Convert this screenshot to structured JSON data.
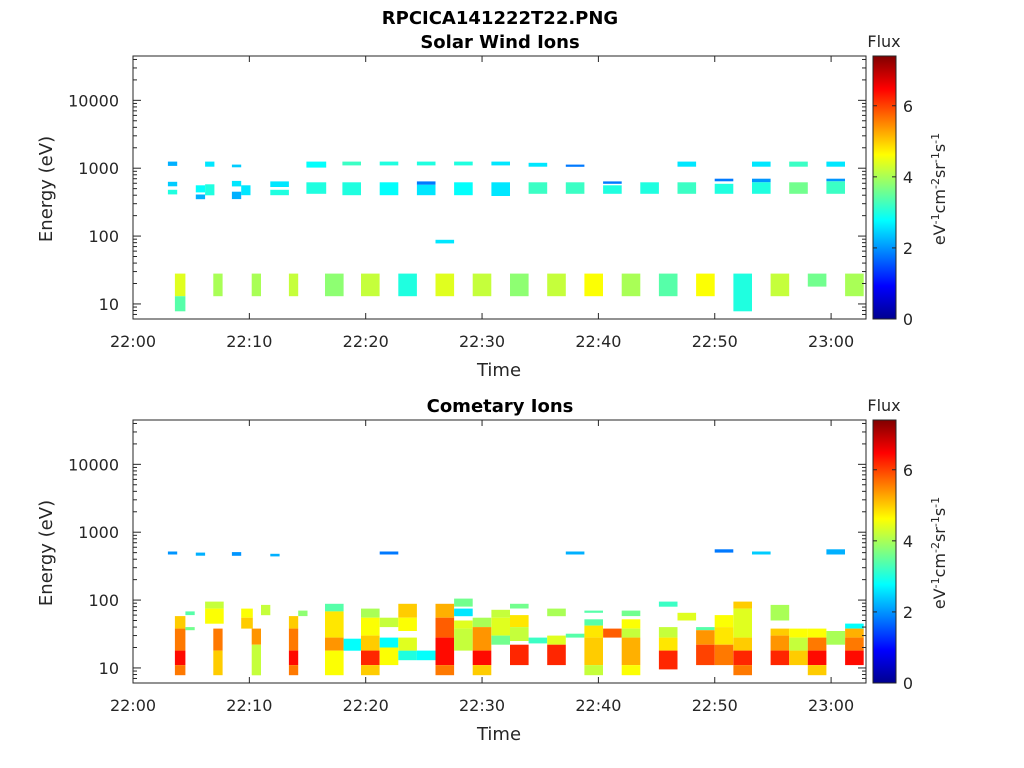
{
  "figure_title": "RPCICA141222T22.PNG",
  "colormap": [
    "#00008f",
    "#0000ff",
    "#0080ff",
    "#00ffff",
    "#80ff80",
    "#ffff00",
    "#ff8000",
    "#ff0000",
    "#800000"
  ],
  "chart_data": [
    {
      "type": "heatmap",
      "title": "Solar Wind Ions",
      "xlabel": "Time",
      "ylabel": "Energy (eV)",
      "x_unit": "minutes after 22:00",
      "xlim": [
        0,
        63
      ],
      "xticks": [
        0,
        10,
        20,
        30,
        40,
        50,
        60
      ],
      "xtick_labels": [
        "22:00",
        "22:10",
        "22:20",
        "22:30",
        "22:40",
        "22:50",
        "23:00"
      ],
      "yscale": "log",
      "ylim": [
        6,
        45000
      ],
      "yticks": [
        10,
        100,
        1000,
        10000
      ],
      "ytick_labels": [
        "10",
        "100",
        "1000",
        "10000"
      ],
      "colorbar": {
        "title": "Flux",
        "label": "eV-1cm-2sr-1s-1",
        "range": [
          0,
          7.4
        ],
        "ticks": [
          0,
          2,
          4,
          6
        ]
      },
      "cells": [
        [
          3.0,
          3.8,
          1080,
          1250,
          2.2
        ],
        [
          3.0,
          3.8,
          540,
          630,
          2.4
        ],
        [
          3.0,
          3.8,
          410,
          480,
          3.0
        ],
        [
          3.6,
          4.5,
          13,
          28,
          4.4
        ],
        [
          3.6,
          4.5,
          7.8,
          13,
          3.4
        ],
        [
          5.4,
          6.2,
          440,
          560,
          2.8
        ],
        [
          5.4,
          6.2,
          350,
          410,
          2.2
        ],
        [
          6.2,
          7.0,
          1050,
          1250,
          2.6
        ],
        [
          6.2,
          7.0,
          400,
          580,
          3.0
        ],
        [
          6.9,
          7.7,
          13,
          28,
          4.0
        ],
        [
          8.5,
          9.3,
          1030,
          1130,
          2.4
        ],
        [
          8.5,
          9.3,
          540,
          650,
          2.6
        ],
        [
          8.5,
          9.3,
          350,
          450,
          2.2
        ],
        [
          9.3,
          10.1,
          400,
          560,
          2.6
        ],
        [
          10.2,
          11.0,
          13,
          28,
          4.0
        ],
        [
          11.8,
          13.4,
          530,
          640,
          2.6
        ],
        [
          11.8,
          13.4,
          400,
          480,
          3.0
        ],
        [
          13.4,
          14.2,
          13,
          28,
          4.2
        ],
        [
          14.9,
          16.6,
          1020,
          1250,
          2.8
        ],
        [
          14.9,
          16.6,
          420,
          620,
          3.0
        ],
        [
          16.5,
          18.1,
          13,
          28,
          3.8
        ],
        [
          18.0,
          19.6,
          1100,
          1250,
          3.2
        ],
        [
          18.0,
          19.6,
          400,
          620,
          3.0
        ],
        [
          19.6,
          21.2,
          13,
          28,
          4.2
        ],
        [
          21.2,
          22.8,
          1100,
          1250,
          3.0
        ],
        [
          21.2,
          22.8,
          400,
          620,
          2.8
        ],
        [
          22.8,
          24.4,
          13,
          28,
          3.0
        ],
        [
          24.4,
          26.0,
          1100,
          1250,
          3.0
        ],
        [
          24.4,
          26.0,
          570,
          640,
          1.8
        ],
        [
          24.4,
          26.0,
          400,
          570,
          2.6
        ],
        [
          26.0,
          27.6,
          13,
          28,
          4.4
        ],
        [
          26.0,
          27.6,
          78,
          88,
          2.6
        ],
        [
          27.6,
          29.2,
          1100,
          1250,
          3.0
        ],
        [
          27.6,
          29.2,
          400,
          620,
          2.8
        ],
        [
          29.2,
          30.8,
          13,
          28,
          4.2
        ],
        [
          30.8,
          32.4,
          1100,
          1250,
          2.6
        ],
        [
          30.8,
          32.4,
          390,
          620,
          2.6
        ],
        [
          32.4,
          34.0,
          13,
          28,
          3.8
        ],
        [
          34.0,
          35.6,
          1050,
          1200,
          2.6
        ],
        [
          34.0,
          35.6,
          420,
          620,
          3.2
        ],
        [
          35.6,
          37.2,
          13,
          28,
          4.2
        ],
        [
          37.2,
          38.8,
          1050,
          1130,
          1.8
        ],
        [
          37.2,
          38.8,
          420,
          620,
          3.2
        ],
        [
          38.8,
          40.4,
          13,
          28,
          4.6
        ],
        [
          40.4,
          42.0,
          590,
          640,
          1.8
        ],
        [
          40.4,
          42.0,
          420,
          560,
          3.0
        ],
        [
          42.0,
          43.6,
          13,
          28,
          4.0
        ],
        [
          43.6,
          45.2,
          420,
          620,
          3.0
        ],
        [
          45.2,
          46.8,
          13,
          28,
          3.4
        ],
        [
          46.8,
          48.4,
          1050,
          1250,
          2.6
        ],
        [
          46.8,
          48.4,
          420,
          620,
          3.2
        ],
        [
          48.4,
          50.0,
          13,
          28,
          4.6
        ],
        [
          50.0,
          51.6,
          640,
          700,
          1.8
        ],
        [
          50.0,
          51.6,
          420,
          590,
          3.0
        ],
        [
          51.6,
          53.2,
          7.8,
          28,
          3.0
        ],
        [
          53.2,
          54.8,
          1050,
          1250,
          2.6
        ],
        [
          53.2,
          54.8,
          620,
          700,
          2.0
        ],
        [
          53.2,
          54.8,
          420,
          620,
          3.0
        ],
        [
          54.8,
          56.4,
          13,
          28,
          4.2
        ],
        [
          56.4,
          58.0,
          1050,
          1250,
          3.2
        ],
        [
          56.4,
          58.0,
          420,
          620,
          3.6
        ],
        [
          58.0,
          59.6,
          18,
          28,
          3.6
        ],
        [
          59.6,
          61.2,
          1050,
          1250,
          2.6
        ],
        [
          59.6,
          61.2,
          640,
          700,
          2.0
        ],
        [
          59.6,
          61.2,
          420,
          640,
          3.2
        ],
        [
          61.2,
          62.8,
          13,
          28,
          4.0
        ]
      ]
    },
    {
      "type": "heatmap",
      "title": "Cometary Ions",
      "xlabel": "Time",
      "ylabel": "Energy (eV)",
      "x_unit": "minutes after 22:00",
      "xlim": [
        0,
        63
      ],
      "xticks": [
        0,
        10,
        20,
        30,
        40,
        50,
        60
      ],
      "xtick_labels": [
        "22:00",
        "22:10",
        "22:20",
        "22:30",
        "22:40",
        "22:50",
        "23:00"
      ],
      "yscale": "log",
      "ylim": [
        6,
        45000
      ],
      "yticks": [
        10,
        100,
        1000,
        10000
      ],
      "ytick_labels": [
        "10",
        "100",
        "1000",
        "10000"
      ],
      "colorbar": {
        "title": "Flux",
        "label": "eV-1cm-2sr-1s-1",
        "range": [
          0,
          7.4
        ],
        "ticks": [
          0,
          2,
          4,
          6
        ]
      },
      "cells": [
        [
          3.0,
          3.8,
          470,
          520,
          2.0
        ],
        [
          3.6,
          4.5,
          38,
          58,
          5.0
        ],
        [
          3.6,
          4.5,
          18,
          38,
          5.6
        ],
        [
          3.6,
          4.5,
          11,
          18,
          6.4
        ],
        [
          3.6,
          4.5,
          7.8,
          11,
          5.6
        ],
        [
          4.5,
          5.3,
          60,
          68,
          3.4
        ],
        [
          4.5,
          5.3,
          36,
          40,
          3.6
        ],
        [
          5.4,
          6.2,
          450,
          500,
          2.2
        ],
        [
          6.2,
          7.8,
          75,
          95,
          4.2
        ],
        [
          6.2,
          7.8,
          45,
          75,
          4.6
        ],
        [
          6.9,
          7.7,
          18,
          38,
          5.6
        ],
        [
          6.9,
          7.7,
          7.8,
          18,
          5.0
        ],
        [
          8.5,
          9.3,
          450,
          510,
          2.0
        ],
        [
          9.3,
          10.3,
          55,
          75,
          4.6
        ],
        [
          9.3,
          10.3,
          38,
          55,
          5.0
        ],
        [
          10.2,
          11.0,
          22,
          38,
          5.4
        ],
        [
          10.2,
          11.0,
          7.8,
          22,
          4.2
        ],
        [
          11.0,
          11.8,
          60,
          85,
          4.2
        ],
        [
          11.8,
          12.6,
          440,
          480,
          2.2
        ],
        [
          13.4,
          14.2,
          38,
          58,
          5.0
        ],
        [
          13.4,
          14.2,
          18,
          38,
          5.6
        ],
        [
          13.4,
          14.2,
          11,
          18,
          6.4
        ],
        [
          13.4,
          14.2,
          7.8,
          11,
          5.6
        ],
        [
          14.2,
          15.0,
          58,
          70,
          3.8
        ],
        [
          16.5,
          18.1,
          68,
          88,
          3.4
        ],
        [
          16.5,
          18.1,
          28,
          68,
          4.8
        ],
        [
          16.5,
          18.1,
          18,
          28,
          5.4
        ],
        [
          16.5,
          18.1,
          7.8,
          18,
          4.6
        ],
        [
          18.1,
          19.7,
          18,
          27,
          2.8
        ],
        [
          19.6,
          21.2,
          55,
          75,
          4.0
        ],
        [
          19.6,
          21.2,
          30,
          55,
          4.6
        ],
        [
          19.6,
          21.2,
          18,
          30,
          5.0
        ],
        [
          19.6,
          21.2,
          11,
          18,
          6.2
        ],
        [
          19.6,
          21.2,
          7.8,
          11,
          5.0
        ],
        [
          21.2,
          22.8,
          470,
          520,
          1.8
        ],
        [
          21.2,
          22.8,
          40,
          55,
          4.2
        ],
        [
          21.2,
          22.8,
          20,
          28,
          2.8
        ],
        [
          21.2,
          22.8,
          11,
          20,
          4.6
        ],
        [
          22.8,
          24.4,
          55,
          88,
          5.0
        ],
        [
          22.8,
          24.4,
          35,
          55,
          4.6
        ],
        [
          22.8,
          24.4,
          13,
          18,
          3.0
        ],
        [
          22.8,
          24.4,
          18,
          28,
          4.4
        ],
        [
          24.4,
          26.0,
          13,
          18,
          2.8
        ],
        [
          26.0,
          27.6,
          55,
          88,
          5.2
        ],
        [
          26.0,
          27.6,
          28,
          55,
          5.8
        ],
        [
          26.0,
          27.6,
          11,
          28,
          6.4
        ],
        [
          26.0,
          27.6,
          7.8,
          11,
          5.6
        ],
        [
          27.6,
          29.2,
          80,
          105,
          3.6
        ],
        [
          27.6,
          29.2,
          58,
          75,
          2.6
        ],
        [
          27.6,
          29.2,
          38,
          50,
          4.4
        ],
        [
          27.6,
          29.2,
          18,
          38,
          4.2
        ],
        [
          29.2,
          30.8,
          40,
          55,
          4.0
        ],
        [
          29.2,
          30.8,
          18,
          40,
          5.4
        ],
        [
          29.2,
          30.8,
          11,
          18,
          6.4
        ],
        [
          29.2,
          30.8,
          7.8,
          11,
          5.0
        ],
        [
          30.8,
          32.4,
          55,
          72,
          4.2
        ],
        [
          30.8,
          32.4,
          30,
          55,
          4.4
        ],
        [
          30.8,
          32.4,
          22,
          30,
          3.6
        ],
        [
          32.4,
          34.0,
          75,
          88,
          3.6
        ],
        [
          32.4,
          34.0,
          40,
          60,
          4.8
        ],
        [
          32.4,
          34.0,
          25,
          40,
          4.2
        ],
        [
          32.4,
          34.0,
          11,
          22,
          6.2
        ],
        [
          34.0,
          35.6,
          23,
          28,
          3.2
        ],
        [
          35.6,
          37.2,
          58,
          75,
          4.0
        ],
        [
          35.6,
          37.2,
          22,
          30,
          4.4
        ],
        [
          35.6,
          37.2,
          11,
          22,
          6.2
        ],
        [
          37.2,
          38.8,
          470,
          520,
          2.2
        ],
        [
          37.2,
          38.8,
          28,
          32,
          3.4
        ],
        [
          38.8,
          40.4,
          65,
          70,
          3.4
        ],
        [
          38.8,
          40.4,
          42,
          52,
          3.4
        ],
        [
          38.8,
          40.4,
          28,
          42,
          4.8
        ],
        [
          38.8,
          40.4,
          11,
          28,
          5.0
        ],
        [
          38.8,
          40.4,
          7.8,
          11,
          4.2
        ],
        [
          40.4,
          42.0,
          28,
          38,
          5.8
        ],
        [
          42.0,
          43.6,
          58,
          70,
          3.6
        ],
        [
          42.0,
          43.6,
          38,
          52,
          4.6
        ],
        [
          42.0,
          43.6,
          28,
          38,
          4.2
        ],
        [
          42.0,
          43.6,
          11,
          28,
          5.2
        ],
        [
          42.0,
          43.6,
          7.8,
          11,
          4.6
        ],
        [
          45.2,
          46.8,
          80,
          95,
          3.2
        ],
        [
          45.2,
          46.8,
          28,
          40,
          4.2
        ],
        [
          45.2,
          46.8,
          18,
          28,
          4.8
        ],
        [
          45.2,
          46.8,
          9.5,
          18,
          6.2
        ],
        [
          46.8,
          48.4,
          50,
          65,
          4.4
        ],
        [
          48.4,
          50.0,
          36,
          40,
          3.4
        ],
        [
          48.4,
          50.0,
          22,
          36,
          5.4
        ],
        [
          48.4,
          50.0,
          11,
          22,
          6.0
        ],
        [
          50.0,
          51.6,
          500,
          560,
          1.8
        ],
        [
          50.0,
          51.6,
          40,
          60,
          4.6
        ],
        [
          50.0,
          51.6,
          22,
          40,
          4.8
        ],
        [
          50.0,
          51.6,
          11,
          22,
          5.6
        ],
        [
          51.6,
          53.2,
          75,
          95,
          5.0
        ],
        [
          51.6,
          53.2,
          28,
          75,
          4.4
        ],
        [
          51.6,
          53.2,
          18,
          28,
          5.0
        ],
        [
          51.6,
          53.2,
          11,
          18,
          6.2
        ],
        [
          51.6,
          53.2,
          7.8,
          11,
          5.6
        ],
        [
          53.2,
          54.8,
          470,
          520,
          2.4
        ],
        [
          54.8,
          56.4,
          50,
          85,
          4.0
        ],
        [
          54.8,
          56.4,
          30,
          38,
          5.0
        ],
        [
          54.8,
          56.4,
          18,
          30,
          5.4
        ],
        [
          54.8,
          56.4,
          11,
          18,
          6.2
        ],
        [
          56.4,
          58.0,
          28,
          38,
          4.6
        ],
        [
          56.4,
          58.0,
          18,
          28,
          4.2
        ],
        [
          56.4,
          58.0,
          11,
          18,
          5.0
        ],
        [
          58.0,
          59.6,
          28,
          38,
          4.6
        ],
        [
          58.0,
          59.6,
          18,
          28,
          5.6
        ],
        [
          58.0,
          59.6,
          11,
          18,
          6.4
        ],
        [
          58.0,
          59.6,
          7.8,
          11,
          5.0
        ],
        [
          59.6,
          61.2,
          470,
          560,
          2.2
        ],
        [
          59.6,
          61.2,
          22,
          35,
          4.0
        ],
        [
          61.2,
          62.8,
          38,
          45,
          2.8
        ],
        [
          61.2,
          62.8,
          28,
          38,
          5.2
        ],
        [
          61.2,
          62.8,
          18,
          28,
          5.6
        ],
        [
          61.2,
          62.8,
          11,
          18,
          6.4
        ]
      ]
    }
  ]
}
